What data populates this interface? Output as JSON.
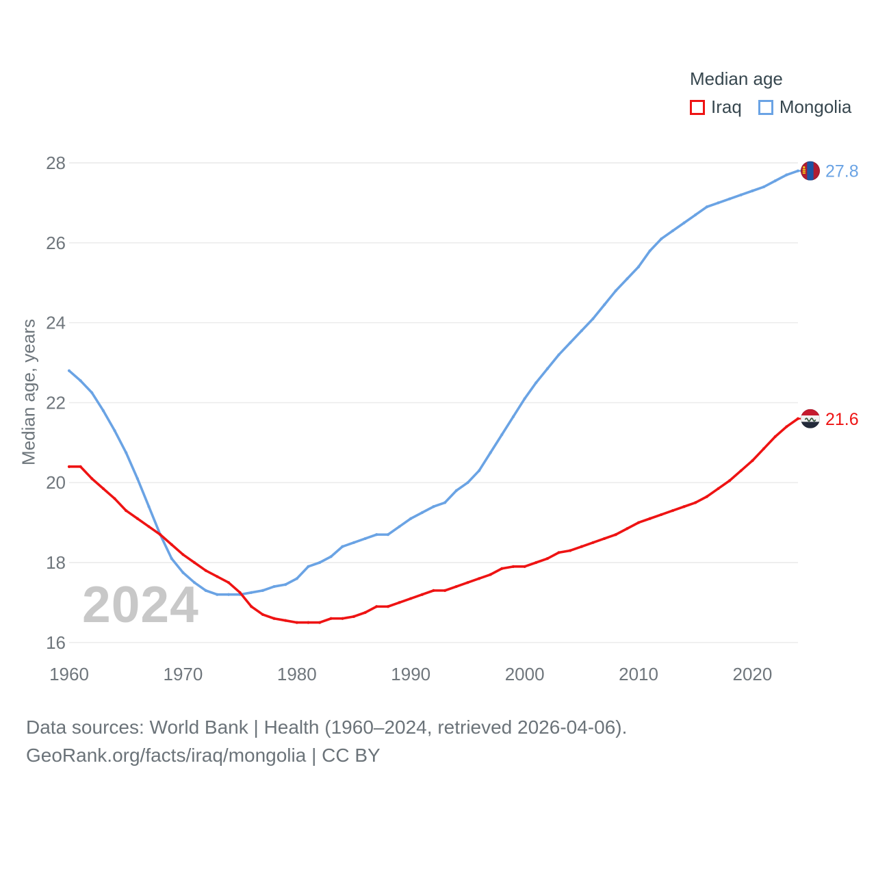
{
  "legend": {
    "title": "Median age",
    "items": [
      {
        "label": "Iraq",
        "color": "#ee1313"
      },
      {
        "label": "Mongolia",
        "color": "#6aa3e4"
      }
    ]
  },
  "watermark": "2024",
  "footer": {
    "line1": "Data sources: World Bank | Health (1960–2024, retrieved 2026-04-06).",
    "line2": "GeoRank.org/facts/iraq/mongolia | CC BY"
  },
  "colors": {
    "grid": "#e9e9e9",
    "tick_label": "#6f767c",
    "legend_text": "#37474f",
    "watermark": "#c8c8c8"
  },
  "chart_data": {
    "type": "line",
    "title": "Median age",
    "ylabel": "Median age, years",
    "xlabel": "",
    "ylim": [
      16,
      28
    ],
    "xlim": [
      1960,
      2024
    ],
    "grid": "horizontal",
    "legend_position": "top-right",
    "y_ticks": [
      16,
      18,
      20,
      22,
      24,
      26,
      28
    ],
    "x_ticks": [
      1960,
      1970,
      1980,
      1990,
      2000,
      2010,
      2020
    ],
    "x": [
      1960,
      1961,
      1962,
      1963,
      1964,
      1965,
      1966,
      1967,
      1968,
      1969,
      1970,
      1971,
      1972,
      1973,
      1974,
      1975,
      1976,
      1977,
      1978,
      1979,
      1980,
      1981,
      1982,
      1983,
      1984,
      1985,
      1986,
      1987,
      1988,
      1989,
      1990,
      1991,
      1992,
      1993,
      1994,
      1995,
      1996,
      1997,
      1998,
      1999,
      2000,
      2001,
      2002,
      2003,
      2004,
      2005,
      2006,
      2007,
      2008,
      2009,
      2010,
      2011,
      2012,
      2013,
      2014,
      2015,
      2016,
      2017,
      2018,
      2019,
      2020,
      2021,
      2022,
      2023,
      2024
    ],
    "series": [
      {
        "name": "Iraq",
        "color": "#ee1313",
        "end_label": "21.6",
        "flag": "iraq",
        "values": [
          20.4,
          20.4,
          20.1,
          19.85,
          19.6,
          19.3,
          19.1,
          18.9,
          18.7,
          18.45,
          18.2,
          18.0,
          17.8,
          17.65,
          17.5,
          17.25,
          16.9,
          16.7,
          16.6,
          16.55,
          16.5,
          16.5,
          16.5,
          16.6,
          16.6,
          16.65,
          16.75,
          16.9,
          16.9,
          17.0,
          17.1,
          17.2,
          17.3,
          17.3,
          17.4,
          17.5,
          17.6,
          17.7,
          17.85,
          17.9,
          17.9,
          18.0,
          18.1,
          18.25,
          18.3,
          18.4,
          18.5,
          18.6,
          18.7,
          18.85,
          19.0,
          19.1,
          19.2,
          19.3,
          19.4,
          19.5,
          19.65,
          19.85,
          20.05,
          20.3,
          20.55,
          20.85,
          21.15,
          21.4,
          21.6
        ]
      },
      {
        "name": "Mongolia",
        "color": "#6aa3e4",
        "end_label": "27.8",
        "flag": "mongolia",
        "values": [
          22.8,
          22.55,
          22.25,
          21.8,
          21.3,
          20.75,
          20.1,
          19.4,
          18.7,
          18.1,
          17.75,
          17.5,
          17.3,
          17.2,
          17.2,
          17.2,
          17.25,
          17.3,
          17.4,
          17.45,
          17.6,
          17.9,
          18.0,
          18.15,
          18.4,
          18.5,
          18.6,
          18.7,
          18.7,
          18.9,
          19.1,
          19.25,
          19.4,
          19.5,
          19.8,
          20.0,
          20.3,
          20.75,
          21.2,
          21.65,
          22.1,
          22.5,
          22.85,
          23.2,
          23.5,
          23.8,
          24.1,
          24.45,
          24.8,
          25.1,
          25.4,
          25.8,
          26.1,
          26.3,
          26.5,
          26.7,
          26.9,
          27.0,
          27.1,
          27.2,
          27.3,
          27.4,
          27.55,
          27.7,
          27.8
        ]
      }
    ]
  }
}
